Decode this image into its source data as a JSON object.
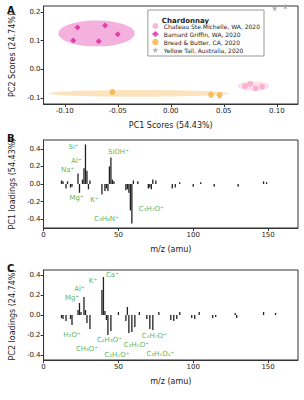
{
  "chart_data": [
    {
      "type": "scatter",
      "title": "A",
      "xlabel": "PC1 Scores (54.43%)",
      "ylabel": "PC2 Scores (24.74%)",
      "legend": "upper right",
      "legend_title": "Chardonnay",
      "grid": false,
      "xlim": [
        -0.12,
        0.12
      ],
      "xticks": [
        {
          "value": -0.1,
          "label": "-0.10"
        },
        -0.05,
        {
          "value": 0,
          "label": "0.00"
        },
        0.05,
        {
          "value": 0.1,
          "label": "0.10"
        }
      ],
      "ylim": [
        -0.12,
        0.22
      ],
      "yticks": [
        -0.1,
        {
          "value": 0,
          "label": "0.0"
        },
        0.1,
        0.2
      ],
      "series": [
        {
          "name": "Chateau Ste.Michelle, WA, 2020",
          "color": "#f7a8c8",
          "marker": "circle",
          "x": [
            0.07,
            0.08,
            0.075,
            0.086
          ],
          "y": [
            -0.058,
            -0.066,
            -0.05,
            -0.06
          ],
          "ellipse": {
            "center": [
              0.078,
              -0.058
            ],
            "radii": [
              0.015,
              0.016
            ]
          }
        },
        {
          "name": "Barnard Griffin, WA, 2020",
          "color": "#e0209e",
          "marker": "diamond",
          "x": [
            -0.088,
            -0.062,
            -0.05,
            -0.092,
            -0.068
          ],
          "y": [
            0.145,
            0.152,
            0.122,
            0.1,
            0.098
          ],
          "ellipse": {
            "center": [
              -0.07,
              0.125
            ],
            "radii": [
              0.036,
              0.045
            ]
          }
        },
        {
          "name": "Bread & Butter, CA, 2020",
          "color": "#f5b041",
          "marker": "hexagon",
          "x": [
            -0.055,
            0.038,
            0.046
          ],
          "y": [
            -0.078,
            -0.088,
            -0.09
          ],
          "ellipse": {
            "center": [
              -0.03,
              -0.083
            ],
            "radii": [
              0.085,
              0.012
            ]
          }
        },
        {
          "name": "Yellow Tail, Australia, 2020",
          "color": "#9e9e9e",
          "marker": "star",
          "x": [
            0.098,
            0.108
          ],
          "y": [
            0.212,
            0.218
          ]
        }
      ]
    },
    {
      "type": "bar",
      "title": "B",
      "xlabel": "m/z (amu)",
      "ylabel": "PC1 loadings (54.43%)",
      "grid": false,
      "xlim": [
        0,
        170
      ],
      "xticks": [
        0,
        50,
        100,
        150
      ],
      "ylim": [
        -0.5,
        0.5
      ],
      "yticks": [
        -0.4,
        -0.2,
        {
          "value": 0,
          "label": "0.0"
        },
        0.2,
        0.4
      ],
      "color": "#222222",
      "x": [
        12,
        13,
        15,
        16,
        18,
        19,
        23,
        24,
        26,
        27,
        28,
        29,
        30,
        31,
        39,
        41,
        42,
        43,
        44,
        45,
        46,
        47,
        55,
        56,
        57,
        58,
        59,
        60,
        63,
        70,
        71,
        72,
        73,
        75,
        86,
        88,
        91,
        100,
        105,
        114,
        130,
        147,
        149
      ],
      "values": [
        0.04,
        0.03,
        -0.05,
        0.03,
        -0.04,
        -0.03,
        0.12,
        -0.1,
        0.05,
        0.18,
        0.45,
        0.15,
        -0.06,
        0.04,
        -0.12,
        -0.08,
        -0.05,
        -0.08,
        0.2,
        0.3,
        0.05,
        0.03,
        -0.07,
        -0.06,
        -0.1,
        -0.3,
        -0.45,
        0.04,
        0.03,
        -0.05,
        -0.04,
        -0.06,
        0.05,
        0.04,
        -0.05,
        -0.04,
        0.02,
        -0.03,
        0.02,
        -0.03,
        -0.03,
        0.03,
        0.02
      ],
      "annotations": {
        "color": "#2ca02c",
        "items": [
          {
            "x": 20,
            "y": 0.42,
            "text": "Si⁺"
          },
          {
            "x": 16,
            "y": 0.16,
            "text": "Na⁺"
          },
          {
            "x": 22,
            "y": 0.26,
            "text": "Al⁺"
          },
          {
            "x": 50,
            "y": 0.36,
            "text": "SiOH⁺"
          },
          {
            "x": 22,
            "y": -0.16,
            "text": "Mg⁺"
          },
          {
            "x": 34,
            "y": -0.18,
            "text": "K⁺"
          },
          {
            "x": 42,
            "y": -0.4,
            "text": "C₃H₈N⁺"
          },
          {
            "x": 72,
            "y": -0.28,
            "text": "C₃H₇O⁺"
          }
        ]
      }
    },
    {
      "type": "bar",
      "title": "C",
      "xlabel": "m/z (amu)",
      "ylabel": "PC2 loadings (24.74%)",
      "grid": false,
      "xlim": [
        0,
        170
      ],
      "xticks": [
        0,
        50,
        100,
        150
      ],
      "ylim": [
        -0.45,
        0.45
      ],
      "yticks": [
        -0.4,
        -0.2,
        {
          "value": 0,
          "label": "0.0"
        },
        0.2,
        0.4
      ],
      "color": "#222222",
      "x": [
        12,
        13,
        15,
        18,
        19,
        23,
        24,
        25,
        27,
        28,
        29,
        31,
        39,
        40,
        41,
        42,
        43,
        45,
        50,
        55,
        56,
        57,
        59,
        61,
        64,
        69,
        71,
        73,
        77,
        85,
        87,
        89,
        91,
        99,
        101,
        104,
        113,
        115,
        128,
        129,
        147,
        155
      ],
      "values": [
        -0.03,
        -0.04,
        -0.06,
        -0.04,
        -0.1,
        0.05,
        0.12,
        0.03,
        0.18,
        0.05,
        -0.08,
        -0.14,
        0.25,
        0.38,
        0.04,
        -0.05,
        -0.2,
        -0.16,
        0.03,
        -0.06,
        0.08,
        -0.18,
        -0.17,
        -0.12,
        0.03,
        -0.04,
        -0.14,
        -0.15,
        0.03,
        -0.05,
        -0.06,
        -0.04,
        0.03,
        -0.03,
        -0.04,
        0.03,
        -0.03,
        -0.02,
        0.02,
        -0.03,
        0.03,
        0.02
      ],
      "annotations": {
        "color": "#2ca02c",
        "items": [
          {
            "x": 19,
            "y": 0.17,
            "text": "Mg⁺"
          },
          {
            "x": 24,
            "y": 0.26,
            "text": "Al⁺"
          },
          {
            "x": 33,
            "y": 0.34,
            "text": "K⁺"
          },
          {
            "x": 46,
            "y": 0.4,
            "text": "Ca⁺"
          },
          {
            "x": 19,
            "y": -0.2,
            "text": "H₃O⁺"
          },
          {
            "x": 29,
            "y": -0.34,
            "text": "CH₃O⁺"
          },
          {
            "x": 44,
            "y": -0.25,
            "text": "C₂H₃O⁺"
          },
          {
            "x": 49,
            "y": -0.4,
            "text": "C₂H₅O⁺"
          },
          {
            "x": 62,
            "y": -0.3,
            "text": "C₃H₅O⁺"
          },
          {
            "x": 74,
            "y": -0.21,
            "text": "C₄H₇O⁺"
          },
          {
            "x": 78,
            "y": -0.39,
            "text": "C₃H₅O₂⁺"
          }
        ]
      }
    }
  ]
}
